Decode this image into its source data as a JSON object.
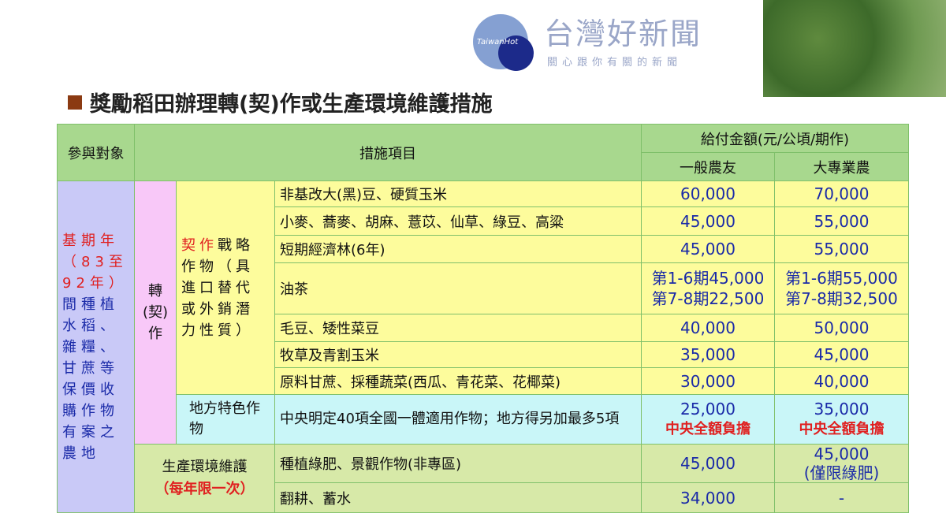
{
  "title": "獎勵稻田辦理轉(契)作或生產環境維護措施",
  "header": {
    "participant": "參與對象",
    "measure": "措施項目",
    "amount": "給付金額",
    "amount_unit": "(元/公頃/期作)",
    "general": "一般農友",
    "professional": "大專業農"
  },
  "participant": {
    "red": "基期年（83至92年）",
    "blue": "間種植水稻、雜糧、甘蔗等保價收購作物有案之農地"
  },
  "conversion": "轉(契)作",
  "strategic": {
    "red": "契作",
    "rest": "戰略作物（具進口替代或外銷潛力性質）"
  },
  "strategic_rows": [
    {
      "item": "非基改大(黑)豆、硬質玉米",
      "general": "60,000",
      "pro": "70,000"
    },
    {
      "item": "小麥、蕎麥、胡麻、薏苡、仙草、綠豆、高粱",
      "general": "45,000",
      "pro": "55,000"
    },
    {
      "item": "短期經濟林(6年)",
      "general": "45,000",
      "pro": "55,000"
    },
    {
      "item": "油茶",
      "general": "第1-6期45,000\n第7-8期22,500",
      "pro": "第1-6期55,000\n第7-8期32,500"
    },
    {
      "item": "毛豆、矮性菜豆",
      "general": "40,000",
      "pro": "50,000"
    },
    {
      "item": "牧草及青割玉米",
      "general": "35,000",
      "pro": "45,000"
    },
    {
      "item": "原料甘蔗、採種蔬菜(西瓜、青花菜、花椰菜)",
      "general": "30,000",
      "pro": "40,000"
    }
  ],
  "local": {
    "label": "地方特色作物",
    "item": "中央明定40項全國一體適用作物；地方得另加最多5項",
    "general": "25,000",
    "pro": "35,000",
    "note": "中央全額負擔"
  },
  "environment": {
    "label": "生產環境維護",
    "note": "（每年限一次）",
    "rows": [
      {
        "item": "種植綠肥、景觀作物(非專區)",
        "general": "45,000",
        "pro": "45,000",
        "pro_note": "(僅限綠肥)"
      },
      {
        "item": "翻耕、蓄水",
        "general": "34,000",
        "pro": "-"
      }
    ]
  },
  "watermark": {
    "logo": "TaiwanHot",
    "name": "台灣好新聞",
    "slogan": "關心跟你有關的新聞"
  }
}
